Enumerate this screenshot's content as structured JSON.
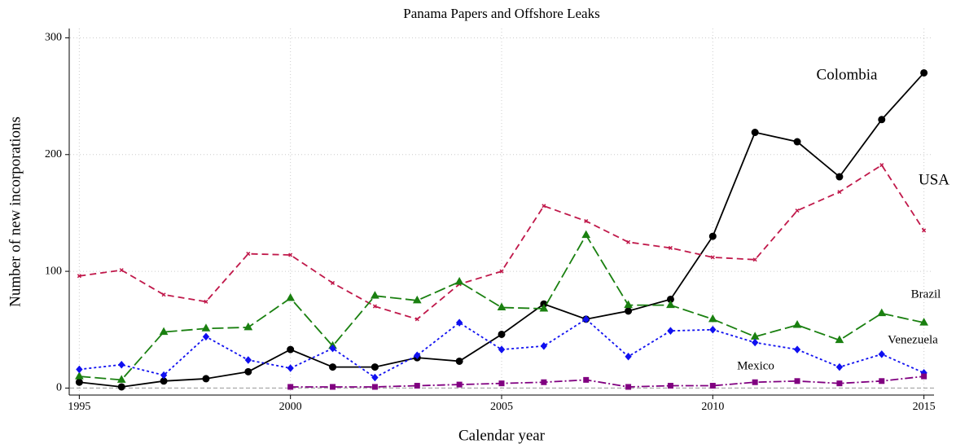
{
  "chart_data": {
    "type": "line",
    "title": "Panama Papers and Offshore Leaks",
    "x_label": "Calendar year",
    "y_label": "Number of new incorporations",
    "x": [
      1995,
      1996,
      1997,
      1998,
      1999,
      2000,
      2001,
      2002,
      2003,
      2004,
      2005,
      2006,
      2007,
      2008,
      2009,
      2010,
      2011,
      2012,
      2013,
      2014,
      2015
    ],
    "xlim": [
      1994.8,
      2015.2
    ],
    "xticks": [
      1995,
      2000,
      2005,
      2010,
      2015
    ],
    "ylim": [
      -6,
      308
    ],
    "yticks": [
      0,
      100,
      200,
      300
    ],
    "grid": true,
    "series": [
      {
        "name": "Colombia",
        "color": "#000000",
        "marker": "circle",
        "dash": "none",
        "values": [
          5,
          1,
          6,
          8,
          14,
          33,
          18,
          18,
          26,
          23,
          46,
          72,
          59,
          66,
          76,
          130,
          219,
          211,
          181,
          230,
          270
        ]
      },
      {
        "name": "USA",
        "color": "#c0184a",
        "marker": "cross",
        "dash": "8 5",
        "values": [
          96,
          101,
          80,
          74,
          115,
          114,
          90,
          70,
          59,
          89,
          100,
          156,
          143,
          125,
          120,
          112,
          110,
          152,
          168,
          191,
          135
        ]
      },
      {
        "name": "Brazil",
        "color": "#1a8010",
        "marker": "triangle",
        "dash": "14 5",
        "values": [
          10,
          7,
          48,
          51,
          52,
          77,
          36,
          79,
          75,
          91,
          69,
          68,
          131,
          71,
          71,
          59,
          44,
          54,
          41,
          64,
          56
        ]
      },
      {
        "name": "Venezuela",
        "color": "#1010f0",
        "marker": "diamond",
        "dash": "3 3",
        "values": [
          16,
          20,
          11,
          44,
          24,
          17,
          34,
          9,
          28,
          56,
          33,
          36,
          59,
          27,
          49,
          50,
          39,
          33,
          18,
          29,
          13
        ]
      },
      {
        "name": "Mexico",
        "color": "#800080",
        "marker": "square",
        "dash": "10 3 2 3",
        "values": [
          null,
          null,
          null,
          null,
          null,
          1,
          1,
          1,
          2,
          3,
          4,
          5,
          7,
          1,
          2,
          2,
          5,
          6,
          4,
          6,
          10
        ]
      }
    ]
  }
}
